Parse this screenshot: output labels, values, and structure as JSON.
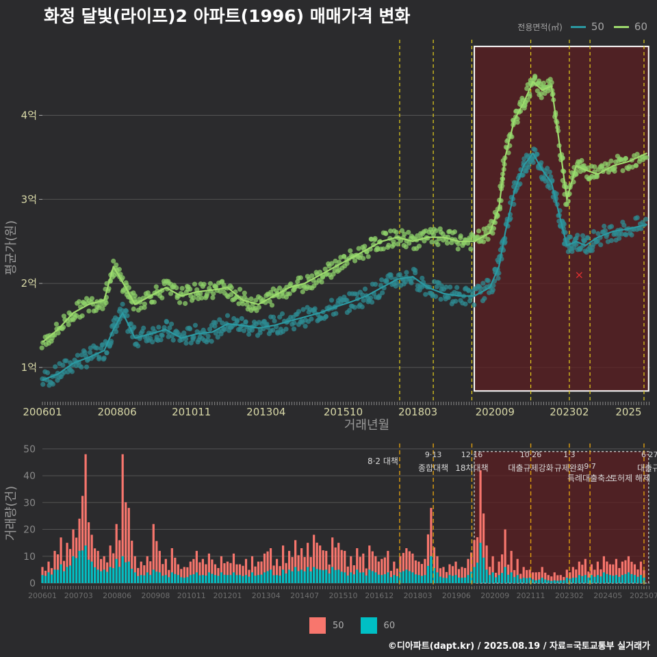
{
  "title": "화정 달빛(라이프)2 아파트(1996) 매매가격 변화",
  "credit": "©디아파트(dapt.kr) / 2025.08.19 / 자료=국토교통부 실거래가",
  "colors": {
    "background": "#2b2b2d",
    "series_50_line": "#2b9aa3",
    "series_60_line": "#9fdc6e",
    "series_50_point": "#2e8b91",
    "series_60_point": "#8ed06a",
    "bar_50": "#f8766d",
    "bar_60": "#00bfc4",
    "policy_line": "#e8d31c",
    "highlight_fill": "#5c1f22",
    "grid": "#555555"
  },
  "chart_data": [
    {
      "type": "line",
      "role": "price",
      "xlabel": "거래년월",
      "ylabel": "평균가(원)",
      "ylim": [
        0.6,
        4.9
      ],
      "y_unit": "억",
      "yticks": [
        {
          "v": 1,
          "label": "1억"
        },
        {
          "v": 2,
          "label": "2억"
        },
        {
          "v": 3,
          "label": "3억"
        },
        {
          "v": 4,
          "label": "4억"
        }
      ],
      "xlim": [
        2006.0,
        2025.7
      ],
      "xticks": [
        {
          "v": 2006.0,
          "label": "200601"
        },
        {
          "v": 2008.42,
          "label": "200806"
        },
        {
          "v": 2010.83,
          "label": "201011"
        },
        {
          "v": 2013.25,
          "label": "201304"
        },
        {
          "v": 2015.75,
          "label": "201510"
        },
        {
          "v": 2018.17,
          "label": "201803"
        },
        {
          "v": 2020.67,
          "label": "202009"
        },
        {
          "v": 2023.08,
          "label": "202302"
        },
        {
          "v": 2025.0,
          "label": "2025"
        }
      ],
      "legend": {
        "title": "전용면적(㎡)",
        "position": "top-right"
      },
      "series": [
        {
          "name": "50",
          "points": [
            [
              2006.0,
              0.85
            ],
            [
              2006.5,
              0.92
            ],
            [
              2007.0,
              1.05
            ],
            [
              2007.5,
              1.12
            ],
            [
              2008.0,
              1.2
            ],
            [
              2008.3,
              1.45
            ],
            [
              2008.6,
              1.65
            ],
            [
              2009.0,
              1.35
            ],
            [
              2009.5,
              1.4
            ],
            [
              2010.0,
              1.45
            ],
            [
              2010.5,
              1.35
            ],
            [
              2011.0,
              1.4
            ],
            [
              2011.5,
              1.42
            ],
            [
              2012.0,
              1.52
            ],
            [
              2012.5,
              1.5
            ],
            [
              2013.0,
              1.47
            ],
            [
              2013.5,
              1.5
            ],
            [
              2014.0,
              1.55
            ],
            [
              2014.5,
              1.6
            ],
            [
              2015.0,
              1.65
            ],
            [
              2015.5,
              1.72
            ],
            [
              2016.0,
              1.78
            ],
            [
              2016.5,
              1.85
            ],
            [
              2017.0,
              1.95
            ],
            [
              2017.5,
              2.05
            ],
            [
              2018.0,
              2.08
            ],
            [
              2018.5,
              1.95
            ],
            [
              2019.0,
              1.88
            ],
            [
              2019.5,
              1.85
            ],
            [
              2020.0,
              1.85
            ],
            [
              2020.5,
              1.95
            ],
            [
              2020.8,
              2.2
            ],
            [
              2021.0,
              2.6
            ],
            [
              2021.3,
              3.1
            ],
            [
              2021.6,
              3.4
            ],
            [
              2021.9,
              3.55
            ],
            [
              2022.2,
              3.35
            ],
            [
              2022.5,
              3.2
            ],
            [
              2022.8,
              2.75
            ],
            [
              2023.0,
              2.45
            ],
            [
              2023.3,
              2.5
            ],
            [
              2023.6,
              2.45
            ],
            [
              2024.0,
              2.55
            ],
            [
              2024.5,
              2.62
            ],
            [
              2025.0,
              2.65
            ],
            [
              2025.6,
              2.7
            ]
          ]
        },
        {
          "name": "60",
          "points": [
            [
              2006.0,
              1.3
            ],
            [
              2006.5,
              1.45
            ],
            [
              2007.0,
              1.65
            ],
            [
              2007.5,
              1.75
            ],
            [
              2008.0,
              1.8
            ],
            [
              2008.3,
              2.2
            ],
            [
              2008.7,
              1.95
            ],
            [
              2009.0,
              1.75
            ],
            [
              2009.5,
              1.85
            ],
            [
              2010.0,
              1.95
            ],
            [
              2010.5,
              1.85
            ],
            [
              2011.0,
              1.9
            ],
            [
              2011.5,
              1.92
            ],
            [
              2012.0,
              1.95
            ],
            [
              2012.5,
              1.8
            ],
            [
              2013.0,
              1.75
            ],
            [
              2013.5,
              1.85
            ],
            [
              2014.0,
              1.95
            ],
            [
              2014.5,
              2.0
            ],
            [
              2015.0,
              2.1
            ],
            [
              2015.5,
              2.2
            ],
            [
              2016.0,
              2.3
            ],
            [
              2016.5,
              2.4
            ],
            [
              2017.0,
              2.5
            ],
            [
              2017.5,
              2.55
            ],
            [
              2018.0,
              2.5
            ],
            [
              2018.5,
              2.55
            ],
            [
              2019.0,
              2.55
            ],
            [
              2019.5,
              2.5
            ],
            [
              2020.0,
              2.5
            ],
            [
              2020.5,
              2.6
            ],
            [
              2020.8,
              2.9
            ],
            [
              2021.0,
              3.5
            ],
            [
              2021.3,
              3.95
            ],
            [
              2021.6,
              4.15
            ],
            [
              2021.9,
              4.4
            ],
            [
              2022.2,
              4.3
            ],
            [
              2022.5,
              4.35
            ],
            [
              2022.8,
              3.55
            ],
            [
              2023.0,
              3.0
            ],
            [
              2023.3,
              3.4
            ],
            [
              2023.6,
              3.35
            ],
            [
              2024.0,
              3.3
            ],
            [
              2024.5,
              3.4
            ],
            [
              2025.0,
              3.45
            ],
            [
              2025.6,
              3.55
            ]
          ]
        }
      ],
      "highlight_box": {
        "x": [
          2020.0,
          2025.65
        ],
        "y": [
          0.72,
          4.82
        ]
      },
      "policy_lines": [
        2017.58,
        2018.67,
        2019.92,
        2021.83,
        2023.08,
        2023.75,
        2025.5
      ],
      "annotation_points": [
        {
          "x": 2023.4,
          "y": 2.1,
          "mark": "x",
          "color": "#e03030"
        }
      ]
    },
    {
      "type": "bar",
      "role": "volume",
      "ylabel": "거래량(건)",
      "ylim": [
        0,
        52
      ],
      "yticks": [
        0,
        10,
        20,
        30,
        40,
        50
      ],
      "xlim": [
        2006.0,
        2025.7
      ],
      "xticks": [
        {
          "v": 2006.0,
          "label": "200601"
        },
        {
          "v": 2007.17,
          "label": "200703"
        },
        {
          "v": 2008.42,
          "label": "200806"
        },
        {
          "v": 2009.67,
          "label": "200908"
        },
        {
          "v": 2010.83,
          "label": "201011"
        },
        {
          "v": 2012.0,
          "label": "201201"
        },
        {
          "v": 2013.25,
          "label": "201304"
        },
        {
          "v": 2014.5,
          "label": "201407"
        },
        {
          "v": 2015.75,
          "label": "201510"
        },
        {
          "v": 2016.92,
          "label": "201612"
        },
        {
          "v": 2018.17,
          "label": "201803"
        },
        {
          "v": 2019.42,
          "label": "201906"
        },
        {
          "v": 2020.67,
          "label": "202009"
        },
        {
          "v": 2021.83,
          "label": "202111"
        },
        {
          "v": 2023.08,
          "label": "202302"
        },
        {
          "v": 2024.33,
          "label": "202405"
        },
        {
          "v": 2025.5,
          "label": "202507"
        }
      ],
      "series": [
        {
          "name": "50",
          "color": "#f8766d"
        },
        {
          "name": "60",
          "color": "#00bfc4"
        }
      ],
      "monthly": [
        [
          2006.0,
          6,
          3
        ],
        [
          2006.2,
          8,
          4
        ],
        [
          2006.4,
          12,
          5
        ],
        [
          2006.6,
          17,
          7
        ],
        [
          2006.8,
          15,
          6
        ],
        [
          2007.0,
          20,
          10
        ],
        [
          2007.2,
          24,
          12
        ],
        [
          2007.4,
          48,
          14
        ],
        [
          2007.6,
          18,
          8
        ],
        [
          2007.8,
          12,
          5
        ],
        [
          2008.0,
          10,
          5
        ],
        [
          2008.2,
          14,
          6
        ],
        [
          2008.4,
          22,
          9
        ],
        [
          2008.6,
          48,
          10
        ],
        [
          2008.8,
          28,
          8
        ],
        [
          2009.0,
          10,
          4
        ],
        [
          2009.2,
          8,
          3
        ],
        [
          2009.4,
          10,
          4
        ],
        [
          2009.6,
          22,
          5
        ],
        [
          2009.8,
          12,
          4
        ],
        [
          2010.0,
          9,
          3
        ],
        [
          2010.2,
          13,
          4
        ],
        [
          2010.4,
          7,
          3
        ],
        [
          2010.6,
          6,
          2
        ],
        [
          2010.8,
          8,
          3
        ],
        [
          2011.0,
          12,
          4
        ],
        [
          2011.2,
          9,
          3
        ],
        [
          2011.4,
          11,
          4
        ],
        [
          2011.6,
          7,
          3
        ],
        [
          2011.8,
          10,
          4
        ],
        [
          2012.0,
          8,
          3
        ],
        [
          2012.2,
          11,
          4
        ],
        [
          2012.4,
          7,
          3
        ],
        [
          2012.6,
          9,
          3
        ],
        [
          2012.8,
          10,
          4
        ],
        [
          2013.0,
          8,
          3
        ],
        [
          2013.2,
          11,
          4
        ],
        [
          2013.4,
          13,
          5
        ],
        [
          2013.6,
          9,
          3
        ],
        [
          2013.8,
          14,
          5
        ],
        [
          2014.0,
          12,
          5
        ],
        [
          2014.2,
          16,
          6
        ],
        [
          2014.4,
          13,
          5
        ],
        [
          2014.6,
          15,
          6
        ],
        [
          2014.8,
          18,
          6
        ],
        [
          2015.0,
          14,
          5
        ],
        [
          2015.2,
          12,
          5
        ],
        [
          2015.4,
          17,
          6
        ],
        [
          2015.6,
          15,
          5
        ],
        [
          2015.8,
          12,
          4
        ],
        [
          2016.0,
          10,
          4
        ],
        [
          2016.2,
          13,
          5
        ],
        [
          2016.4,
          11,
          4
        ],
        [
          2016.6,
          14,
          5
        ],
        [
          2016.8,
          10,
          4
        ],
        [
          2017.0,
          9,
          3
        ],
        [
          2017.2,
          12,
          4
        ],
        [
          2017.4,
          8,
          3
        ],
        [
          2017.6,
          10,
          4
        ],
        [
          2017.8,
          13,
          5
        ],
        [
          2018.0,
          11,
          4
        ],
        [
          2018.2,
          8,
          3
        ],
        [
          2018.4,
          9,
          3
        ],
        [
          2018.6,
          28,
          10
        ],
        [
          2018.8,
          10,
          4
        ],
        [
          2019.0,
          6,
          2
        ],
        [
          2019.2,
          7,
          3
        ],
        [
          2019.4,
          8,
          3
        ],
        [
          2019.6,
          6,
          2
        ],
        [
          2019.8,
          9,
          3
        ],
        [
          2020.0,
          16,
          6
        ],
        [
          2020.2,
          42,
          15
        ],
        [
          2020.4,
          14,
          5
        ],
        [
          2020.6,
          10,
          4
        ],
        [
          2020.8,
          8,
          3
        ],
        [
          2021.0,
          20,
          6
        ],
        [
          2021.2,
          12,
          4
        ],
        [
          2021.4,
          9,
          3
        ],
        [
          2021.6,
          6,
          2
        ],
        [
          2021.8,
          5,
          2
        ],
        [
          2022.0,
          4,
          1
        ],
        [
          2022.2,
          6,
          2
        ],
        [
          2022.4,
          3,
          1
        ],
        [
          2022.6,
          4,
          1
        ],
        [
          2022.8,
          3,
          1
        ],
        [
          2023.0,
          5,
          2
        ],
        [
          2023.2,
          6,
          2
        ],
        [
          2023.4,
          8,
          3
        ],
        [
          2023.6,
          9,
          3
        ],
        [
          2023.8,
          7,
          3
        ],
        [
          2024.0,
          8,
          3
        ],
        [
          2024.2,
          10,
          4
        ],
        [
          2024.4,
          7,
          3
        ],
        [
          2024.6,
          9,
          3
        ],
        [
          2024.8,
          8,
          3
        ],
        [
          2025.0,
          10,
          4
        ],
        [
          2025.2,
          7,
          3
        ],
        [
          2025.4,
          8,
          3
        ],
        [
          2025.6,
          5,
          2
        ]
      ],
      "highlight_box": {
        "x": [
          2020.0,
          2025.65
        ],
        "y": [
          0,
          49
        ]
      },
      "policy_lines": [
        {
          "x": 2017.58,
          "date": "8·2",
          "label": "대책"
        },
        {
          "x": 2018.67,
          "date": "9·13",
          "label": "종합대책"
        },
        {
          "x": 2019.92,
          "date": "12·16",
          "label": "18차대책"
        },
        {
          "x": 2021.83,
          "date": "10·26",
          "label": "대출규제강화"
        },
        {
          "x": 2023.08,
          "date": "1·3",
          "label": "규제완화"
        },
        {
          "x": 2023.75,
          "date": "9·7",
          "label": "특례대출축소"
        },
        {
          "x": 2025.5,
          "date": "6·27",
          "label": "대출규제"
        }
      ],
      "extra_labels": [
        "토허제 해제"
      ]
    }
  ]
}
